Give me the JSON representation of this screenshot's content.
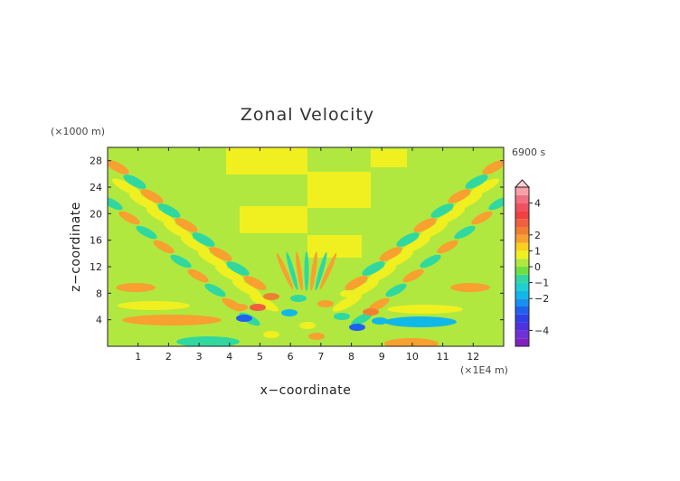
{
  "chart_data": {
    "type": "heatmap",
    "title": "Zonal Velocity",
    "time_label": "6900 s",
    "xlabel": "x−coordinate",
    "ylabel": "z−coordinate",
    "x_scale_label": "(×1E4 m)",
    "y_scale_label": "(×1000 m)",
    "xlim": [
      0,
      13
    ],
    "ylim": [
      0,
      30
    ],
    "x_ticks": [
      1,
      2,
      3,
      4,
      5,
      6,
      7,
      8,
      9,
      10,
      11,
      12
    ],
    "y_ticks": [
      4,
      8,
      12,
      16,
      20,
      24,
      28
    ],
    "colorbar": {
      "levels": [
        -5,
        -4.5,
        -4,
        -3.5,
        -3,
        -2.5,
        -2,
        -1.5,
        -1,
        -0.5,
        0,
        0.5,
        1,
        1.5,
        2,
        2.5,
        3,
        3.5,
        4,
        4.5,
        5
      ],
      "colors": [
        "#8020c0",
        "#7030d8",
        "#5030e0",
        "#3040e8",
        "#2060f0",
        "#1890f0",
        "#10b8e8",
        "#20d0d0",
        "#30d8a0",
        "#70e040",
        "#b0e840",
        "#f0f020",
        "#f8d020",
        "#f8a030",
        "#f08030",
        "#f06040",
        "#f04040",
        "#f05060",
        "#f07080",
        "#f8a0a8"
      ],
      "tick_labels": [
        "4",
        "2",
        "1",
        "0",
        "−1",
        "−2",
        "−4"
      ],
      "tick_values": [
        4,
        2,
        1,
        0,
        -1,
        -2,
        -4
      ]
    }
  }
}
